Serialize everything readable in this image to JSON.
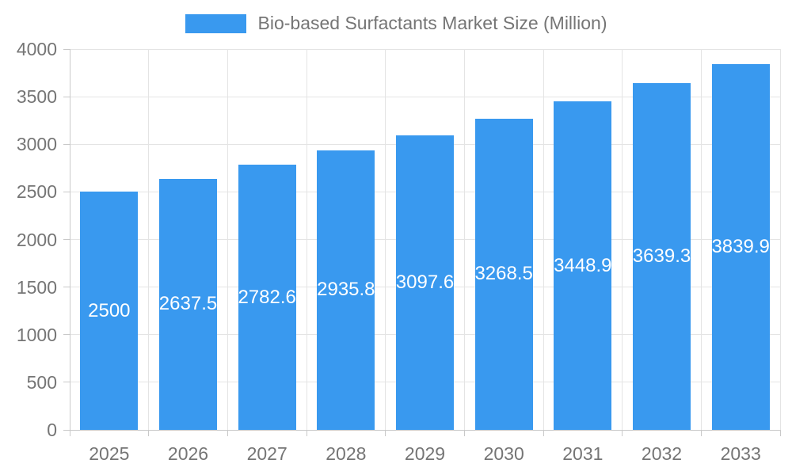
{
  "legend": {
    "label": "Bio-based Surfactants Market Size (Million)"
  },
  "chart_data": {
    "type": "bar",
    "title": "Bio-based Surfactants Market Size (Million)",
    "xlabel": "",
    "ylabel": "",
    "categories": [
      "2025",
      "2026",
      "2027",
      "2028",
      "2029",
      "2030",
      "2031",
      "2032",
      "2033"
    ],
    "values": [
      2500,
      2637.5,
      2782.6,
      2935.8,
      3097.6,
      3268.5,
      3448.9,
      3639.3,
      3839.9
    ],
    "value_labels": [
      "2500",
      "2637.5",
      "2782.6",
      "2935.8",
      "3097.6",
      "3268.5",
      "3448.9",
      "3639.3",
      "3839.9"
    ],
    "ylim": [
      0,
      4000
    ],
    "ytick_values": [
      0,
      500,
      1000,
      1500,
      2000,
      2500,
      3000,
      3500,
      4000
    ],
    "ytick_labels": [
      "0",
      "500",
      "1000",
      "1500",
      "2000",
      "2500",
      "3000",
      "3500",
      "4000"
    ],
    "grid": true,
    "legend_position": "top-center",
    "value_label_position": "inside-center",
    "colors": {
      "bar": "#3999EF",
      "grid": "#e4e4e4",
      "axis": "#c9c9c9",
      "tick_text": "#757575",
      "value_label": "#ffffff",
      "background": "#ffffff"
    }
  }
}
